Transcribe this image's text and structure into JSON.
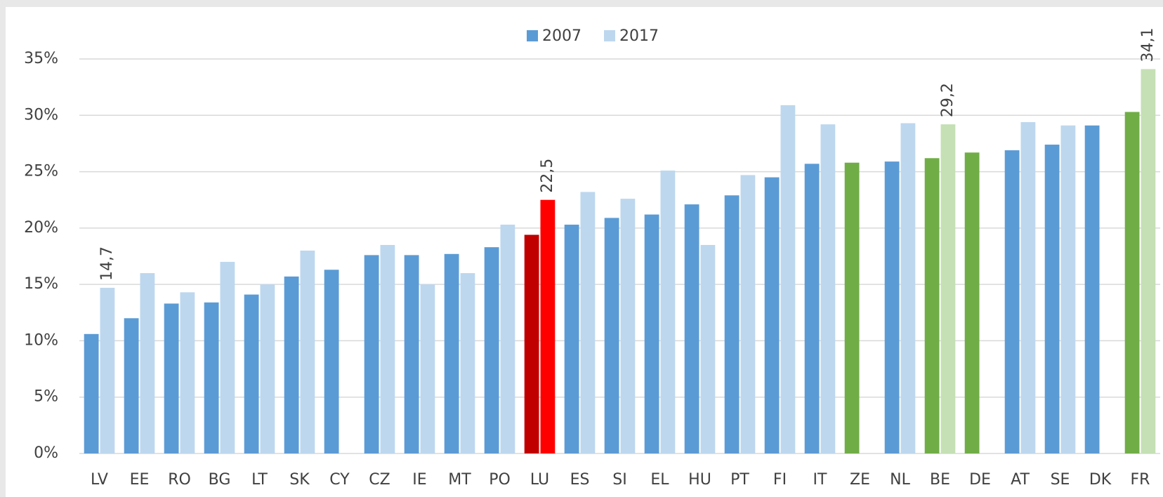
{
  "chart_data": {
    "type": "bar",
    "categories": [
      "LV",
      "EE",
      "RO",
      "BG",
      "LT",
      "SK",
      "CY",
      "CZ",
      "IE",
      "MT",
      "PO",
      "LU",
      "ES",
      "SI",
      "EL",
      "HU",
      "PT",
      "FI",
      "IT",
      "ZE",
      "NL",
      "BE",
      "DE",
      "AT",
      "SE",
      "DK",
      "FR"
    ],
    "series": [
      {
        "name": "2007",
        "color": "#5b9bd5",
        "values": [
          10.6,
          12.0,
          13.3,
          13.4,
          14.1,
          15.7,
          16.3,
          17.6,
          17.6,
          17.7,
          18.3,
          19.4,
          20.3,
          20.9,
          21.2,
          22.1,
          22.9,
          24.5,
          25.7,
          25.8,
          25.9,
          26.2,
          26.7,
          26.9,
          27.4,
          29.1,
          30.3
        ],
        "colors": [
          "#5b9bd5",
          "#5b9bd5",
          "#5b9bd5",
          "#5b9bd5",
          "#5b9bd5",
          "#5b9bd5",
          "#5b9bd5",
          "#5b9bd5",
          "#5b9bd5",
          "#5b9bd5",
          "#5b9bd5",
          "#c00000",
          "#5b9bd5",
          "#5b9bd5",
          "#5b9bd5",
          "#5b9bd5",
          "#5b9bd5",
          "#5b9bd5",
          "#5b9bd5",
          "#70ad47",
          "#5b9bd5",
          "#70ad47",
          "#70ad47",
          "#5b9bd5",
          "#5b9bd5",
          "#5b9bd5",
          "#70ad47"
        ]
      },
      {
        "name": "2017",
        "color": "#bdd7ee",
        "values": [
          14.7,
          16.0,
          14.3,
          17.0,
          15.0,
          18.0,
          null,
          18.5,
          15.0,
          16.0,
          20.3,
          22.5,
          23.2,
          22.6,
          25.1,
          18.5,
          24.7,
          30.9,
          29.2,
          null,
          29.3,
          29.2,
          null,
          29.4,
          29.1,
          null,
          34.1
        ],
        "value_labels": [
          "14,7",
          null,
          null,
          null,
          null,
          null,
          null,
          null,
          null,
          null,
          null,
          "22,5",
          null,
          null,
          null,
          null,
          null,
          null,
          null,
          null,
          null,
          "29,2",
          null,
          null,
          null,
          null,
          "34,1"
        ],
        "colors": [
          "#bdd7ee",
          "#bdd7ee",
          "#bdd7ee",
          "#bdd7ee",
          "#bdd7ee",
          "#bdd7ee",
          "#bdd7ee",
          "#bdd7ee",
          "#bdd7ee",
          "#bdd7ee",
          "#bdd7ee",
          "#ff0000",
          "#bdd7ee",
          "#bdd7ee",
          "#bdd7ee",
          "#bdd7ee",
          "#bdd7ee",
          "#bdd7ee",
          "#bdd7ee",
          "#bdd7ee",
          "#bdd7ee",
          "#c5e0b4",
          "#bdd7ee",
          "#bdd7ee",
          "#bdd7ee",
          "#bdd7ee",
          "#c5e0b4"
        ]
      }
    ],
    "ylim": [
      0,
      35
    ],
    "yticks": [
      {
        "value": 0,
        "label": "0%"
      },
      {
        "value": 5,
        "label": "5%"
      },
      {
        "value": 10,
        "label": "10%"
      },
      {
        "value": 15,
        "label": "15%"
      },
      {
        "value": 20,
        "label": "20%"
      },
      {
        "value": 25,
        "label": "25%"
      },
      {
        "value": 30,
        "label": "30%"
      },
      {
        "value": 35,
        "label": "35%"
      }
    ],
    "grid": true,
    "legend": "top"
  }
}
